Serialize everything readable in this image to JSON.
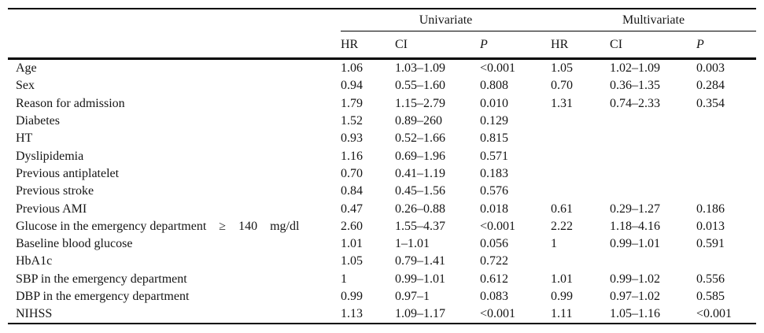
{
  "table": {
    "group_headers": [
      {
        "label": "Univariate"
      },
      {
        "label": "Multivariate"
      }
    ],
    "sub_headers": [
      "HR",
      "CI",
      "P",
      "HR",
      "CI",
      "P"
    ],
    "rows": [
      {
        "label": "Age",
        "u_hr": "1.06",
        "u_ci": "1.03–1.09",
        "u_p": "<0.001",
        "m_hr": "1.05",
        "m_ci": "1.02–1.09",
        "m_p": "0.003"
      },
      {
        "label": "Sex",
        "u_hr": "0.94",
        "u_ci": "0.55–1.60",
        "u_p": "0.808",
        "m_hr": "0.70",
        "m_ci": "0.36–1.35",
        "m_p": "0.284"
      },
      {
        "label": "Reason for admission",
        "u_hr": "1.79",
        "u_ci": "1.15–2.79",
        "u_p": "0.010",
        "m_hr": "1.31",
        "m_ci": "0.74–2.33",
        "m_p": "0.354"
      },
      {
        "label": "Diabetes",
        "u_hr": "1.52",
        "u_ci": "0.89–260",
        "u_p": "0.129",
        "m_hr": "",
        "m_ci": "",
        "m_p": ""
      },
      {
        "label": "HT",
        "u_hr": "0.93",
        "u_ci": "0.52–1.66",
        "u_p": "0.815",
        "m_hr": "",
        "m_ci": "",
        "m_p": ""
      },
      {
        "label": "Dyslipidemia",
        "u_hr": "1.16",
        "u_ci": "0.69–1.96",
        "u_p": "0.571",
        "m_hr": "",
        "m_ci": "",
        "m_p": ""
      },
      {
        "label": "Previous antiplatelet",
        "u_hr": "0.70",
        "u_ci": "0.41–1.19",
        "u_p": "0.183",
        "m_hr": "",
        "m_ci": "",
        "m_p": ""
      },
      {
        "label": "Previous stroke",
        "u_hr": "0.84",
        "u_ci": "0.45–1.56",
        "u_p": "0.576",
        "m_hr": "",
        "m_ci": "",
        "m_p": ""
      },
      {
        "label": "Previous AMI",
        "u_hr": "0.47",
        "u_ci": "0.26–0.88",
        "u_p": "0.018",
        "m_hr": "0.61",
        "m_ci": "0.29–1.27",
        "m_p": "0.186"
      },
      {
        "label": "Glucose in the emergency department ≥ 140 mg/dl",
        "u_hr": "2.60",
        "u_ci": "1.55–4.37",
        "u_p": "<0.001",
        "m_hr": "2.22",
        "m_ci": "1.18–4.16",
        "m_p": "0.013"
      },
      {
        "label": "Baseline blood glucose",
        "u_hr": "1.01",
        "u_ci": "1–1.01",
        "u_p": "0.056",
        "m_hr": "1",
        "m_ci": "0.99–1.01",
        "m_p": "0.591"
      },
      {
        "label": "HbA1c",
        "u_hr": "1.05",
        "u_ci": "0.79–1.41",
        "u_p": "0.722",
        "m_hr": "",
        "m_ci": "",
        "m_p": ""
      },
      {
        "label": "SBP in the emergency department",
        "u_hr": "1",
        "u_ci": "0.99–1.01",
        "u_p": "0.612",
        "m_hr": "1.01",
        "m_ci": "0.99–1.02",
        "m_p": "0.556"
      },
      {
        "label": "DBP in the emergency department",
        "u_hr": "0.99",
        "u_ci": "0.97–1",
        "u_p": "0.083",
        "m_hr": "0.99",
        "m_ci": "0.97–1.02",
        "m_p": "0.585"
      },
      {
        "label": "NIHSS",
        "u_hr": "1.13",
        "u_ci": "1.09–1.17",
        "u_p": "<0.001",
        "m_hr": "1.11",
        "m_ci": "1.05–1.16",
        "m_p": "<0.001"
      }
    ]
  }
}
